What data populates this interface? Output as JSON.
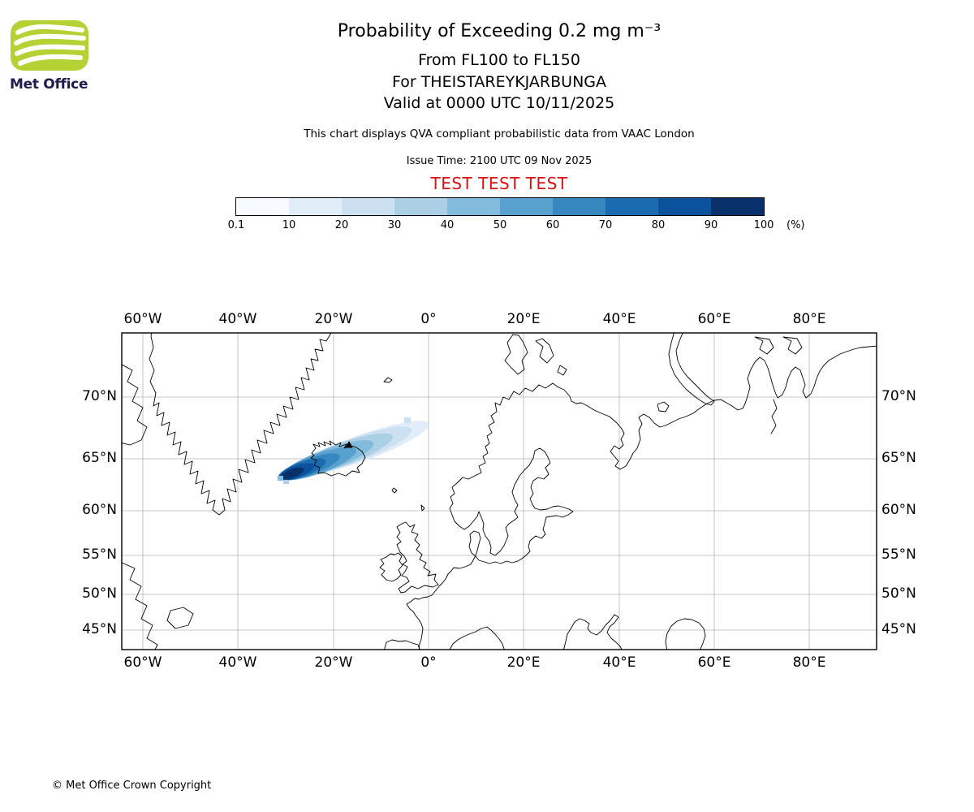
{
  "logo": {
    "text": "Met Office",
    "green": "#b4d234",
    "text_color": "#1d1b4f"
  },
  "header": {
    "title": "Probability of Exceeding 0.2 mg m⁻³",
    "subtitle1": "From FL100 to FL150",
    "subtitle2": "For THEISTAREYKJARBUNGA",
    "subtitle3": "Valid at 0000 UTC 10/11/2025",
    "description": "This chart displays QVA compliant probabilistic data from VAAC London",
    "issue_time": "Issue Time: 2100 UTC 09 Nov 2025",
    "test_banner": "TEST TEST TEST",
    "test_color": "#dd1111"
  },
  "colorbar": {
    "ticks": [
      "0.1",
      "10",
      "20",
      "30",
      "40",
      "50",
      "60",
      "70",
      "80",
      "90",
      "100"
    ],
    "unit": "(%)",
    "colors": [
      "#f7fbff",
      "#e1edf8",
      "#cde0f1",
      "#abd0e6",
      "#82bbdb",
      "#58a1cf",
      "#3787c0",
      "#1b6bb0",
      "#0b519c",
      "#08306b"
    ]
  },
  "map": {
    "x_ticks": [
      "60°W",
      "40°W",
      "20°W",
      "0°",
      "20°E",
      "40°E",
      "60°E",
      "80°E"
    ],
    "y_ticks": [
      "70°N",
      "65°N",
      "60°N",
      "55°N",
      "50°N",
      "45°N"
    ],
    "plume": {
      "description": "Blue probability plume over and west of Iceland, elongated toward the northeast; highest probabilities (dark blue) at the southwest end near 28°W 64°N, fading to pale blue near 3°W 67.5°N",
      "volcano": "THEISTAREYKJARBUNGA"
    }
  },
  "footer": {
    "copyright": "© Met Office Crown Copyright"
  }
}
